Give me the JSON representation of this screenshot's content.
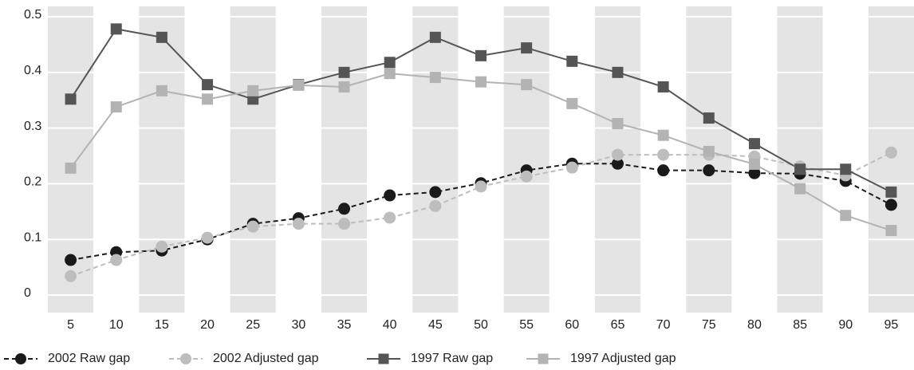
{
  "chart_data": {
    "type": "line",
    "x": [
      5,
      10,
      15,
      20,
      25,
      30,
      35,
      40,
      45,
      50,
      55,
      60,
      65,
      70,
      75,
      80,
      85,
      90,
      95
    ],
    "xlim": [
      2.5,
      97.5
    ],
    "xticks": [
      5,
      10,
      15,
      20,
      25,
      30,
      35,
      40,
      45,
      50,
      55,
      60,
      65,
      70,
      75,
      80,
      85,
      90,
      95
    ],
    "ylim": [
      0,
      0.5
    ],
    "yticks": [
      0,
      0.1,
      0.2,
      0.3,
      0.4,
      0.5
    ],
    "grid": true,
    "legend": "bottom",
    "series": [
      {
        "name": "2002 Raw gap",
        "color": "#1a1a1a",
        "marker": "circle",
        "dashed": true,
        "values": [
          0.063,
          0.077,
          0.08,
          0.1,
          0.128,
          0.138,
          0.155,
          0.179,
          0.185,
          0.201,
          0.224,
          0.236,
          0.236,
          0.224,
          0.224,
          0.219,
          0.218,
          0.205,
          0.162
        ]
      },
      {
        "name": "2002 Adjusted gap",
        "color": "#bdbdbd",
        "marker": "circle",
        "dashed": true,
        "values": [
          0.034,
          0.063,
          0.087,
          0.103,
          0.123,
          0.128,
          0.128,
          0.139,
          0.16,
          0.195,
          0.213,
          0.229,
          0.252,
          0.252,
          0.252,
          0.249,
          0.231,
          0.215,
          0.256
        ]
      },
      {
        "name": "1997 Raw gap",
        "color": "#555555",
        "marker": "square",
        "dashed": false,
        "values": [
          0.352,
          0.478,
          0.463,
          0.378,
          0.352,
          0.378,
          0.4,
          0.418,
          0.463,
          0.43,
          0.444,
          0.42,
          0.4,
          0.374,
          0.318,
          0.272,
          0.226,
          0.226,
          0.185
        ]
      },
      {
        "name": "1997 Adjusted gap",
        "color": "#b3b3b3",
        "marker": "square",
        "dashed": false,
        "values": [
          0.228,
          0.338,
          0.367,
          0.352,
          0.367,
          0.377,
          0.374,
          0.398,
          0.391,
          0.383,
          0.378,
          0.344,
          0.308,
          0.287,
          0.258,
          0.235,
          0.191,
          0.143,
          0.116
        ]
      }
    ]
  }
}
